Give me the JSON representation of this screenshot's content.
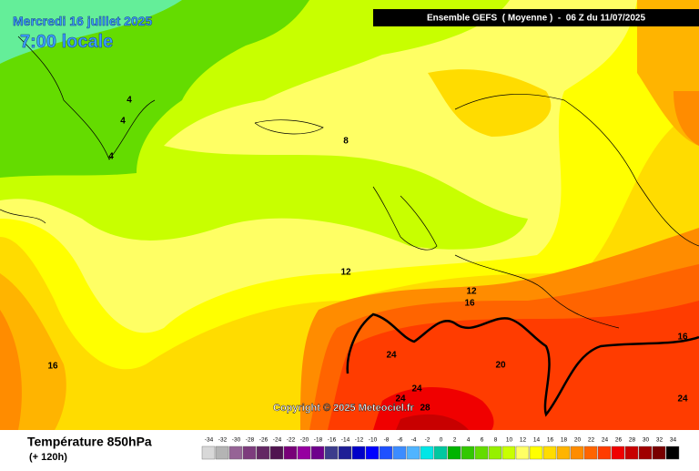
{
  "header": {
    "date": "Mercredi 16 juillet 2025",
    "time": "7:00 locale",
    "model": "Ensemble GEFS  ( Moyenne )  -  06 Z du 11/07/2025"
  },
  "map": {
    "contour_labels": [
      4,
      4,
      4,
      8,
      12,
      12,
      16,
      16,
      16,
      20,
      24,
      24,
      24,
      24,
      28
    ],
    "copyright": "Copyright © 2025 Meteociel.fr"
  },
  "legend": {
    "title": "Température 850hPa",
    "subtitle": "(+ 120h)",
    "values": [
      -34,
      -32,
      -30,
      -28,
      -26,
      -24,
      -22,
      -20,
      -18,
      -16,
      -14,
      -12,
      -10,
      -8,
      -6,
      -4,
      -2,
      0,
      2,
      4,
      6,
      8,
      10,
      12,
      14,
      16,
      18,
      20,
      22,
      24,
      26,
      28,
      30,
      32,
      34
    ],
    "colors": [
      "#d8d8d8",
      "#b4b4b4",
      "#966496",
      "#7d3c7d",
      "#642864",
      "#501450",
      "#780078",
      "#9600a0",
      "#6e008c",
      "#3c3c8c",
      "#1e1e96",
      "#0000c8",
      "#0000ff",
      "#1e50ff",
      "#3c8cff",
      "#50b4ff",
      "#00e6e6",
      "#00c8a0",
      "#00b400",
      "#32c800",
      "#64dc00",
      "#96f000",
      "#c8ff00",
      "#ffff64",
      "#ffff00",
      "#ffdc00",
      "#ffb400",
      "#ff8c00",
      "#ff6400",
      "#ff3c00",
      "#f00000",
      "#c80000",
      "#a00000",
      "#780000",
      "#000000"
    ]
  }
}
